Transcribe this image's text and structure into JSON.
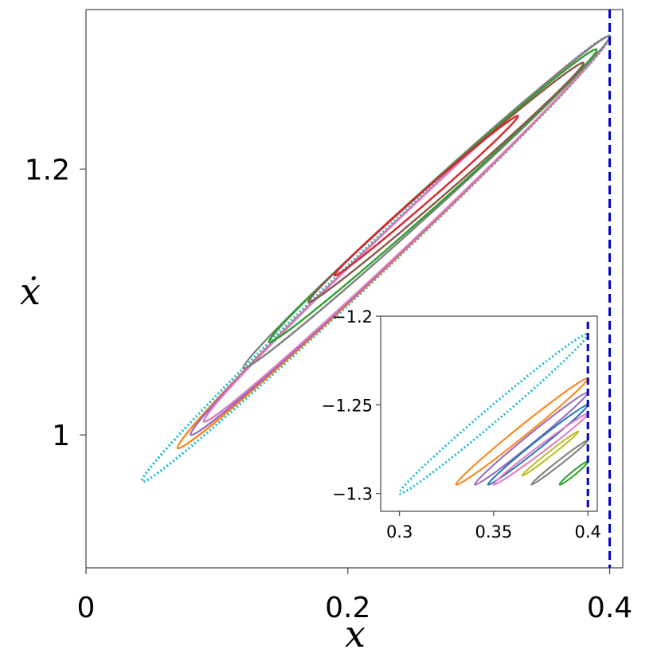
{
  "chart_data": [
    {
      "type": "scatter",
      "panel": "main",
      "xlabel": "x",
      "ylabel": "ẋ",
      "xlim": [
        0,
        0.41
      ],
      "ylim": [
        0.9,
        1.32
      ],
      "xticks": [
        {
          "value": 0,
          "label": "0"
        },
        {
          "value": 0.2,
          "label": "0.2"
        },
        {
          "value": 0.4,
          "label": "0.4"
        }
      ],
      "yticks": [
        {
          "value": 1.0,
          "label": "1"
        },
        {
          "value": 1.2,
          "label": "1.2"
        }
      ],
      "reference_line": {
        "orientation": "vertical",
        "x": 0.4,
        "color": "#0000cc",
        "style": "dashed"
      },
      "series": [
        {
          "color": "#17becf",
          "style": "dotted",
          "x_range": [
            0.043,
            0.4
          ],
          "y_range": [
            0.965,
            1.3
          ]
        },
        {
          "color": "#ff7f0e",
          "style": "solid",
          "x_range": [
            0.07,
            0.4
          ],
          "y_range": [
            0.99,
            1.3
          ]
        },
        {
          "color": "#9467bd",
          "style": "solid",
          "x_range": [
            0.08,
            0.4
          ],
          "y_range": [
            1.0,
            1.3
          ]
        },
        {
          "color": "#1f77b4",
          "style": "solid",
          "x_range": [
            0.09,
            0.4
          ],
          "y_range": [
            1.01,
            1.3
          ]
        },
        {
          "color": "#e377c2",
          "style": "solid",
          "x_range": [
            0.09,
            0.4
          ],
          "y_range": [
            1.01,
            1.3
          ]
        },
        {
          "color": "#7f7f7f",
          "style": "solid",
          "x_range": [
            0.12,
            0.4
          ],
          "y_range": [
            1.05,
            1.3
          ]
        },
        {
          "color": "#2ca02c",
          "style": "solid",
          "x_range": [
            0.14,
            0.39
          ],
          "y_range": [
            1.07,
            1.29
          ]
        },
        {
          "color": "#8c564b",
          "style": "solid",
          "x_range": [
            0.17,
            0.38
          ],
          "y_range": [
            1.1,
            1.28
          ]
        },
        {
          "color": "#d62728",
          "style": "solid",
          "x_range": [
            0.19,
            0.33
          ],
          "y_range": [
            1.12,
            1.24
          ]
        }
      ]
    },
    {
      "type": "scatter",
      "panel": "inset",
      "xlim": [
        0.29,
        0.405
      ],
      "ylim": [
        -1.31,
        -1.2
      ],
      "xticks": [
        {
          "value": 0.3,
          "label": "0.3"
        },
        {
          "value": 0.35,
          "label": "0.35"
        },
        {
          "value": 0.4,
          "label": "0.4"
        }
      ],
      "yticks": [
        {
          "value": -1.2,
          "label": "−1.2"
        },
        {
          "value": -1.25,
          "label": "−1.25"
        },
        {
          "value": -1.3,
          "label": "−1.3"
        }
      ],
      "reference_line": {
        "orientation": "vertical",
        "x": 0.4,
        "color": "#0000cc",
        "style": "dashed"
      },
      "series": [
        {
          "color": "#17becf",
          "style": "dotted",
          "x_range": [
            0.3,
            0.4
          ],
          "y_range": [
            -1.3,
            -1.21
          ]
        },
        {
          "color": "#ff7f0e",
          "style": "solid",
          "x_range": [
            0.33,
            0.4
          ],
          "y_range": [
            -1.295,
            -1.235
          ]
        },
        {
          "color": "#9467bd",
          "style": "solid",
          "x_range": [
            0.34,
            0.4
          ],
          "y_range": [
            -1.295,
            -1.243
          ]
        },
        {
          "color": "#1f77b4",
          "style": "solid",
          "x_range": [
            0.347,
            0.4
          ],
          "y_range": [
            -1.295,
            -1.25
          ]
        },
        {
          "color": "#e377c2",
          "style": "solid",
          "x_range": [
            0.35,
            0.4
          ],
          "y_range": [
            -1.295,
            -1.255
          ]
        },
        {
          "color": "#7f7f7f",
          "style": "solid",
          "x_range": [
            0.37,
            0.4
          ],
          "y_range": [
            -1.295,
            -1.27
          ]
        },
        {
          "color": "#bcbd22",
          "style": "solid",
          "x_range": [
            0.365,
            0.395
          ],
          "y_range": [
            -1.29,
            -1.265
          ]
        },
        {
          "color": "#2ca02c",
          "style": "solid",
          "x_range": [
            0.385,
            0.4
          ],
          "y_range": [
            -1.295,
            -1.282
          ]
        }
      ]
    }
  ]
}
